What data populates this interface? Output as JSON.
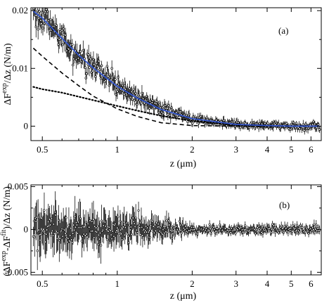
{
  "chart_data": [
    {
      "type": "scatter",
      "panel_label": "(a)",
      "xlabel": "z (μm)",
      "ylabel_parts": [
        "ΔF",
        "exp",
        "/Δz (N/m)"
      ],
      "xscale": "log",
      "xlim": [
        0.45,
        6.6
      ],
      "ylim": [
        -0.0025,
        0.0205
      ],
      "xticks": [
        0.5,
        1,
        2,
        3,
        4,
        5,
        6
      ],
      "xtick_labels": [
        "0.5",
        "1",
        "2",
        "3",
        "4",
        "5",
        "6"
      ],
      "yticks": [
        0,
        0.01,
        0.02
      ],
      "ytick_labels": [
        "0",
        "0.01",
        "0.02"
      ],
      "series": [
        {
          "kind": "data with error bars",
          "color": "#000000",
          "model": "0.0121*exp(-2.8*(z-0.5)) + 0.0066*exp(-1.3*(z-0.5))",
          "x_range": [
            0.46,
            6.5
          ],
          "n_points": 420,
          "typical_error_near": 0.0015,
          "typical_error_far": 0.0006,
          "scatter_near": 0.0016,
          "scatter_far": 0.0004
        },
        {
          "kind": "fit",
          "style": "solid",
          "color": "#3355cc",
          "x": [
            0.46,
            0.5,
            0.6,
            0.7,
            0.8,
            1.0,
            1.2,
            1.5,
            2.0,
            3.0,
            4.0,
            5.0,
            6.5
          ],
          "y": [
            0.0199,
            0.0187,
            0.0152,
            0.0123,
            0.0101,
            0.0069,
            0.0049,
            0.0029,
            0.0013,
            0.0003,
            0.0001,
            0.0,
            0.0
          ]
        },
        {
          "kind": "component",
          "style": "dashed",
          "color": "#000000",
          "x": [
            0.46,
            0.5,
            0.6,
            0.7,
            0.8,
            1.0,
            1.2,
            1.5,
            2.0,
            3.0,
            4.0,
            6.5
          ],
          "y": [
            0.0135,
            0.0121,
            0.0092,
            0.007,
            0.0052,
            0.003,
            0.0017,
            0.0006,
            0.0001,
            0.0,
            0.0,
            0.0
          ]
        },
        {
          "kind": "component",
          "style": "dotted",
          "color": "#000000",
          "x": [
            0.46,
            0.5,
            0.6,
            0.7,
            0.8,
            1.0,
            1.2,
            1.5,
            2.0,
            3.0,
            4.0,
            6.5
          ],
          "y": [
            0.0068,
            0.0064,
            0.0058,
            0.0051,
            0.0045,
            0.0035,
            0.0027,
            0.0018,
            0.0009,
            0.0002,
            0.0,
            0.0
          ]
        }
      ]
    },
    {
      "type": "scatter",
      "panel_label": "(b)",
      "xlabel": "z (μm)",
      "ylabel_parts": [
        "(ΔF",
        "exp",
        "-ΔF",
        "fit",
        ")/Δz (N/m)"
      ],
      "xscale": "log",
      "xlim": [
        0.45,
        6.6
      ],
      "ylim": [
        -0.0053,
        0.0052
      ],
      "xticks": [
        0.5,
        1,
        2,
        3,
        4,
        5,
        6
      ],
      "xtick_labels": [
        "0.5",
        "1",
        "2",
        "3",
        "4",
        "5",
        "6"
      ],
      "yticks": [
        -0.005,
        0,
        0.005
      ],
      "ytick_labels": [
        "-0.005",
        "0",
        "0.005"
      ],
      "series": [
        {
          "kind": "residuals with error bars",
          "color": "#000000",
          "x_range": [
            0.46,
            6.5
          ],
          "n_points": 420,
          "mean": 0,
          "scatter_near": 0.0018,
          "scatter_far": 0.0004
        }
      ]
    }
  ]
}
